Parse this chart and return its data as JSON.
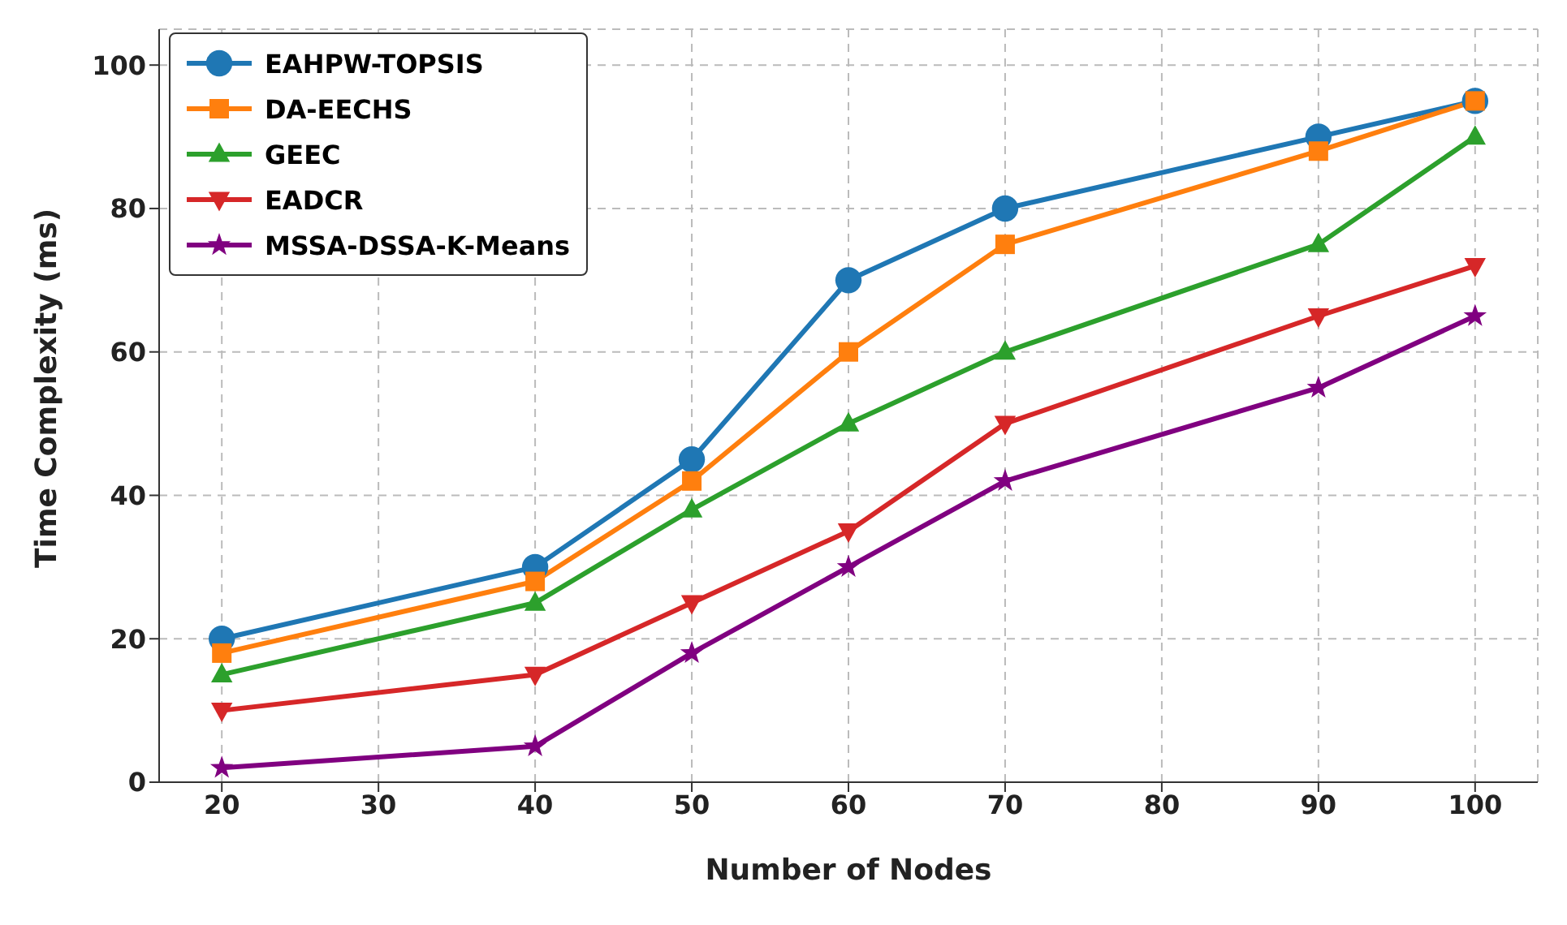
{
  "chart_data": {
    "type": "line",
    "xlabel": "Number of Nodes",
    "ylabel": "Time Complexity (ms)",
    "x": [
      20,
      40,
      50,
      60,
      70,
      90,
      100
    ],
    "series": [
      {
        "name": "EAHPW-TOPSIS",
        "color": "#1f77b4",
        "marker": "circle",
        "values": [
          20,
          30,
          45,
          70,
          80,
          90,
          95
        ]
      },
      {
        "name": "DA-EECHS",
        "color": "#ff7f0e",
        "marker": "square",
        "values": [
          18,
          28,
          42,
          60,
          75,
          88,
          95
        ]
      },
      {
        "name": "GEEC",
        "color": "#2ca02c",
        "marker": "triangle",
        "values": [
          15,
          25,
          38,
          50,
          60,
          75,
          90
        ]
      },
      {
        "name": "EADCR",
        "color": "#d62728",
        "marker": "triangle-down",
        "values": [
          10,
          15,
          25,
          35,
          50,
          65,
          72
        ]
      },
      {
        "name": "MSSA-DSSA-K-Means",
        "color": "#800080",
        "marker": "star",
        "values": [
          2,
          5,
          18,
          30,
          42,
          55,
          65
        ]
      }
    ],
    "xlim": [
      16,
      104
    ],
    "xticks": [
      20,
      30,
      40,
      50,
      60,
      70,
      80,
      90,
      100
    ],
    "ylim": [
      0,
      105
    ],
    "yticks": [
      0,
      20,
      40,
      60,
      80,
      100
    ],
    "grid": true,
    "legend": "top left",
    "line_style": "solid"
  }
}
